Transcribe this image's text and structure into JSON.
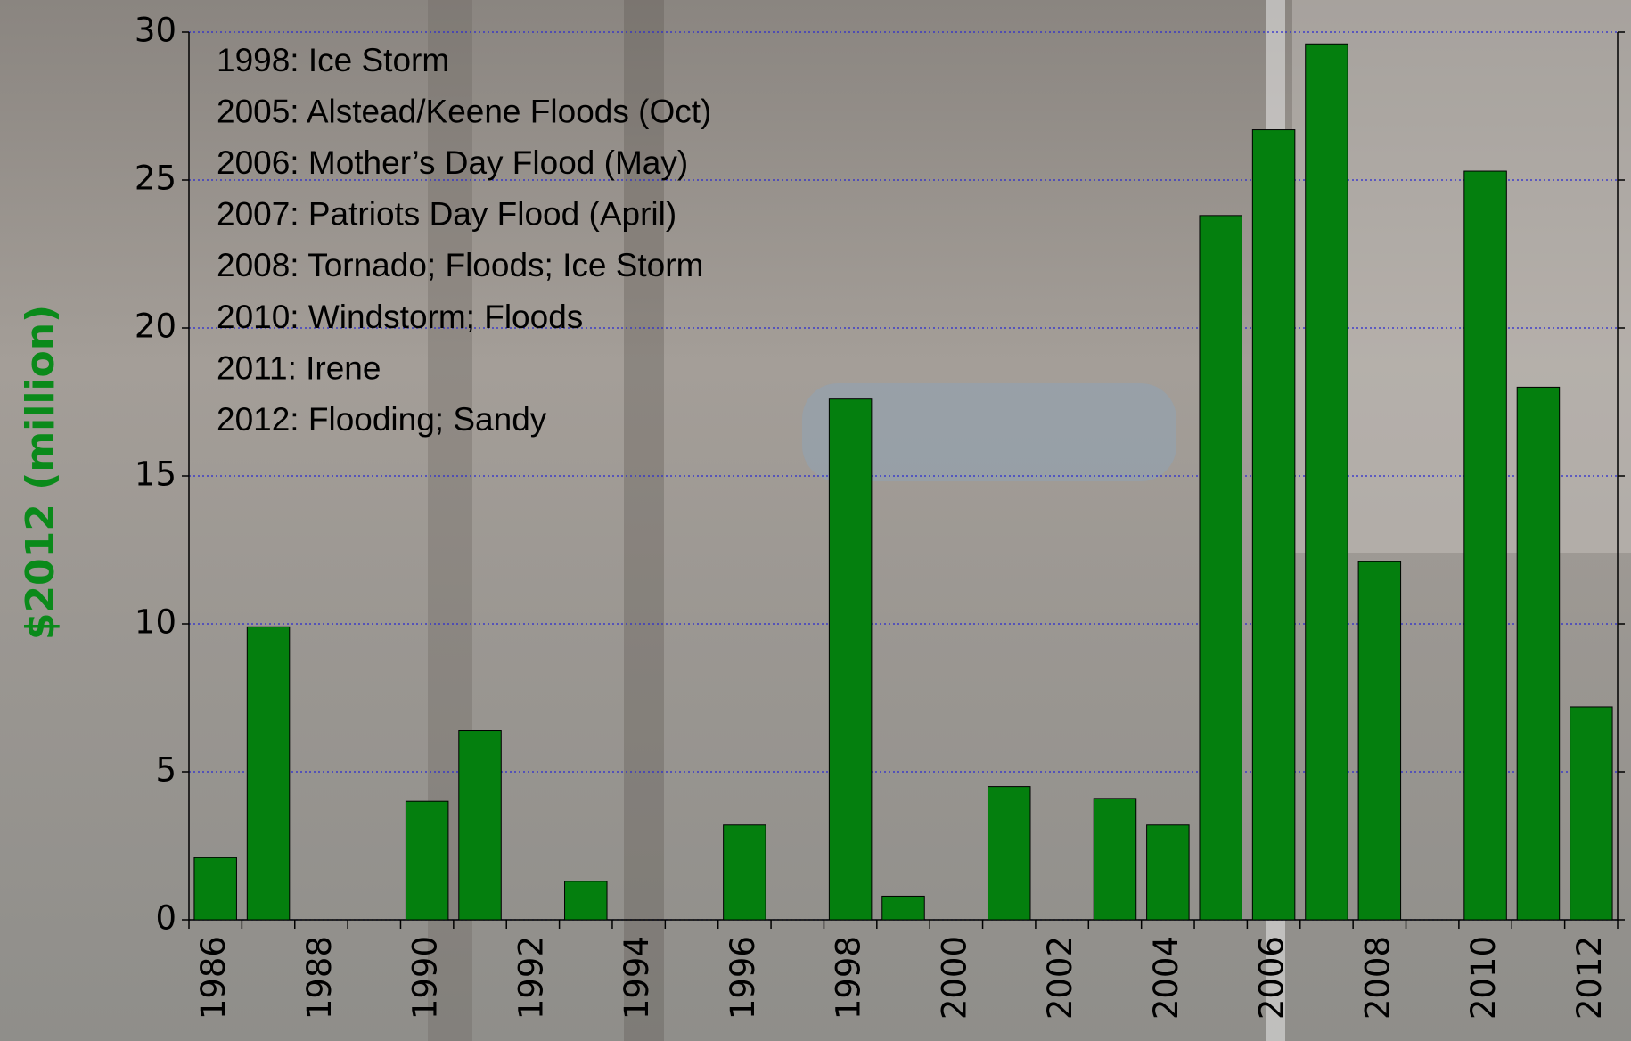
{
  "chart_data": {
    "type": "bar",
    "y_label": "$2012 (million)",
    "annotations": [
      "1998: Ice Storm",
      "2005: Alstead/Keene Floods (Oct)",
      "2006: Mother’s Day Flood (May)",
      "2007: Patriots Day Flood (April)",
      "2008: Tornado; Floods; Ice Storm",
      "2010: Windstorm; Floods",
      "2011: Irene",
      "2012: Flooding; Sandy"
    ],
    "categories": [
      "1986",
      null,
      "1988",
      null,
      "1990",
      null,
      "1992",
      null,
      "1994",
      null,
      "1996",
      null,
      "1998",
      null,
      "2000",
      null,
      "2002",
      null,
      "2004",
      null,
      "2006",
      null,
      "2008",
      null,
      "2010",
      null,
      "2012"
    ],
    "values": [
      2.1,
      9.9,
      0,
      0,
      4.0,
      6.4,
      0,
      1.3,
      0,
      0,
      3.2,
      0,
      17.6,
      0.8,
      0,
      4.5,
      0,
      4.1,
      3.2,
      23.8,
      26.7,
      29.6,
      12.1,
      0,
      25.3,
      18.0,
      7.2
    ],
    "color": "#047f0e",
    "ylim": [
      0,
      30
    ],
    "yticks": [
      0,
      5,
      10,
      15,
      20,
      25,
      30
    ],
    "grid": true
  }
}
